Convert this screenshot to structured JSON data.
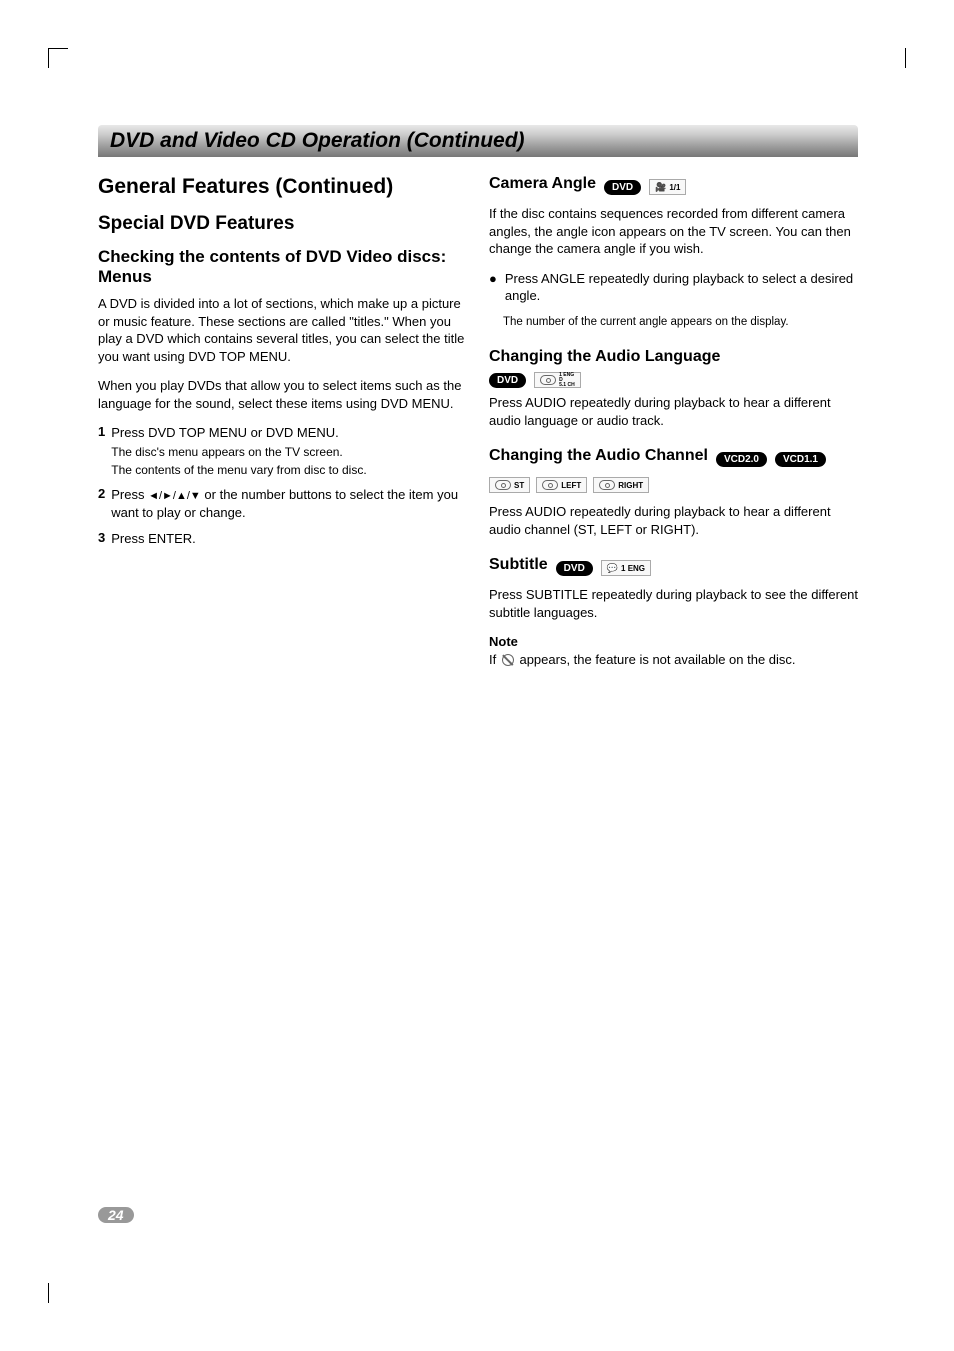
{
  "page_number": "24",
  "banner": "DVD and Video CD Operation (Continued)",
  "left": {
    "h1": "General Features (Continued)",
    "h2": "Special DVD Features",
    "h3": "Checking the contents of DVD Video discs: Menus",
    "p1": "A DVD is divided into a lot of sections, which make up a picture or music feature. These sections are called \"titles.\" When you play a DVD which contains several titles, you can select the title you want using DVD TOP MENU.",
    "p2": "When you play DVDs that allow you to select items such as the language for the sound, select these items using DVD MENU.",
    "steps": [
      {
        "num": "1",
        "text": "Press DVD TOP MENU or DVD MENU.",
        "sub1": "The disc's menu appears on the TV screen.",
        "sub2": "The contents of the menu vary from disc to disc."
      },
      {
        "num": "2",
        "text_pre": "Press ",
        "arrows": "◄/►/▲/▼",
        "text_post": " or the number buttons to select the item you want to play or change."
      },
      {
        "num": "3",
        "text": "Press ENTER."
      }
    ]
  },
  "right": {
    "camera": {
      "title": "Camera Angle",
      "badge": "DVD",
      "indicator": "1/1",
      "p": "If the disc contains sequences recorded from different camera angles, the angle icon appears on the TV screen. You can then change the camera angle if you wish.",
      "bullet": "Press ANGLE repeatedly during playback to select a desired angle.",
      "bullet_sub": "The number of the current angle appears on the display."
    },
    "audio_lang": {
      "title": "Changing the Audio Language",
      "badge": "DVD",
      "ind_top": "1 ENG",
      "ind_mid": "D",
      "ind_bot": "5.1 CH",
      "p": "Press AUDIO repeatedly during playback to hear a different audio language or audio track."
    },
    "audio_ch": {
      "title": "Changing the Audio Channel",
      "badge1": "VCD2.0",
      "badge2": "VCD1.1",
      "inds": [
        "ST",
        "LEFT",
        "RIGHT"
      ],
      "p": "Press AUDIO repeatedly during playback to hear a different audio channel (ST, LEFT or RIGHT)."
    },
    "subtitle": {
      "title": "Subtitle",
      "badge": "DVD",
      "indicator": "1 ENG",
      "p": "Press SUBTITLE repeatedly during playback to see the different subtitle languages.",
      "note_label": "Note",
      "note_pre": "If ",
      "note_post": " appears, the feature is not available on the disc."
    }
  },
  "colors": {
    "text": "#000000",
    "background": "#ffffff",
    "badge_bg": "#000000",
    "badge_fg": "#ffffff",
    "indicator_border": "#aaaaaa",
    "indicator_bg": "#f8f8f8",
    "page_pill_bg": "#999999"
  },
  "typography": {
    "body_fontsize": 13,
    "h1_fontsize": 21,
    "h2_fontsize": 19,
    "h3_fontsize": 17,
    "h4_fontsize": 16,
    "sub_fontsize": 12,
    "badge_fontsize": 10,
    "font_family": "Arial, Helvetica, sans-serif"
  }
}
